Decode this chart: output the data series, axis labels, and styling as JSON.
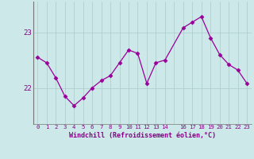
{
  "x": [
    0,
    1,
    2,
    3,
    4,
    5,
    6,
    7,
    8,
    9,
    10,
    11,
    12,
    13,
    14,
    16,
    17,
    18,
    19,
    20,
    21,
    22,
    23
  ],
  "y": [
    22.55,
    22.45,
    22.18,
    21.85,
    21.68,
    21.82,
    22.0,
    22.13,
    22.22,
    22.45,
    22.68,
    22.62,
    22.08,
    22.45,
    22.5,
    23.08,
    23.18,
    23.28,
    22.9,
    22.6,
    22.42,
    22.32,
    22.08
  ],
  "line_color": "#990099",
  "marker": "D",
  "marker_size": 2.5,
  "bg_color": "#cce8e8",
  "grid_color": "#aacccc",
  "xlabel": "Windchill (Refroidissement éolien,°C)",
  "xlabel_color": "#880088",
  "tick_color": "#880088",
  "yticks": [
    22,
    23
  ],
  "ylim": [
    21.35,
    23.55
  ],
  "xlim": [
    -0.5,
    23.5
  ],
  "xtick_labels": [
    "0",
    "1",
    "2",
    "3",
    "4",
    "5",
    "6",
    "7",
    "8",
    "9",
    "10",
    "11",
    "12",
    "13",
    "14",
    "",
    "16",
    "17",
    "18",
    "19",
    "20",
    "21",
    "22",
    "23"
  ],
  "xticks_pos": [
    0,
    1,
    2,
    3,
    4,
    5,
    6,
    7,
    8,
    9,
    10,
    11,
    12,
    13,
    14,
    15,
    16,
    17,
    18,
    19,
    20,
    21,
    22,
    23
  ]
}
